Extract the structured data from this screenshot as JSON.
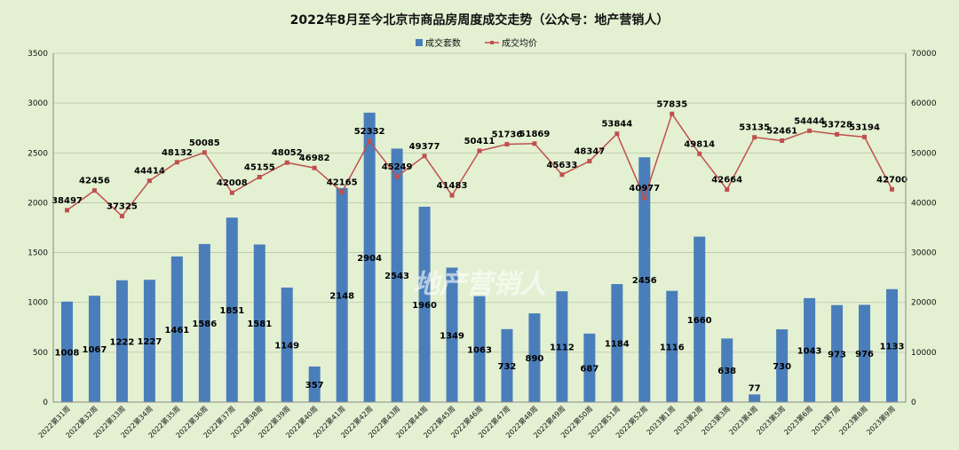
{
  "chart_data": {
    "type": "bar",
    "title": "2022年8月至今北京市商品房周度成交走势（公众号：地产营销人）",
    "watermark": "地产营销人",
    "legend_position": "top",
    "grid": true,
    "categories": [
      "2022第31周",
      "2022第32周",
      "2022第33周",
      "2022第34周",
      "2022第35周",
      "2022第36周",
      "2022第37周",
      "2022第38周",
      "2022第39周",
      "2022第40周",
      "2022第41周",
      "2022第42周",
      "2022第43周",
      "2022第44周",
      "2022第45周",
      "2022第46周",
      "2022第47周",
      "2022第48周",
      "2022第49周",
      "2022第50周",
      "2022第51周",
      "2022第52周",
      "2023第1周",
      "2023第2周",
      "2023第3周",
      "2023第4周",
      "2023第5周",
      "2023第6周",
      "2023第7周",
      "2023第8周",
      "2023第9周"
    ],
    "series": [
      {
        "name": "成交套数",
        "type": "bar",
        "axis": "left",
        "color": "#4a7ebb",
        "values": [
          1008,
          1067,
          1222,
          1227,
          1461,
          1586,
          1851,
          1581,
          1149,
          357,
          2148,
          2904,
          2543,
          1960,
          1349,
          1063,
          732,
          890,
          1112,
          687,
          1184,
          2456,
          1116,
          1660,
          638,
          77,
          730,
          1043,
          973,
          976,
          1133
        ]
      },
      {
        "name": "成交均价",
        "type": "line",
        "axis": "right",
        "color": "#c0504d",
        "values": [
          38497,
          42456,
          37325,
          44414,
          48132,
          50085,
          42008,
          45155,
          48052,
          46982,
          42165,
          52332,
          45249,
          49377,
          41483,
          50411,
          51736,
          51869,
          45633,
          48347,
          53844,
          40977,
          57835,
          49814,
          42664,
          53135,
          52461,
          54444,
          53728,
          53194,
          42700
        ]
      }
    ],
    "ylim_left": [
      0,
      3500
    ],
    "yticks_left": [
      0,
      500,
      1000,
      1500,
      2000,
      2500,
      3000,
      3500
    ],
    "ylim_right": [
      0,
      70000
    ],
    "yticks_right": [
      0,
      10000,
      20000,
      30000,
      40000,
      50000,
      60000,
      70000
    ]
  }
}
